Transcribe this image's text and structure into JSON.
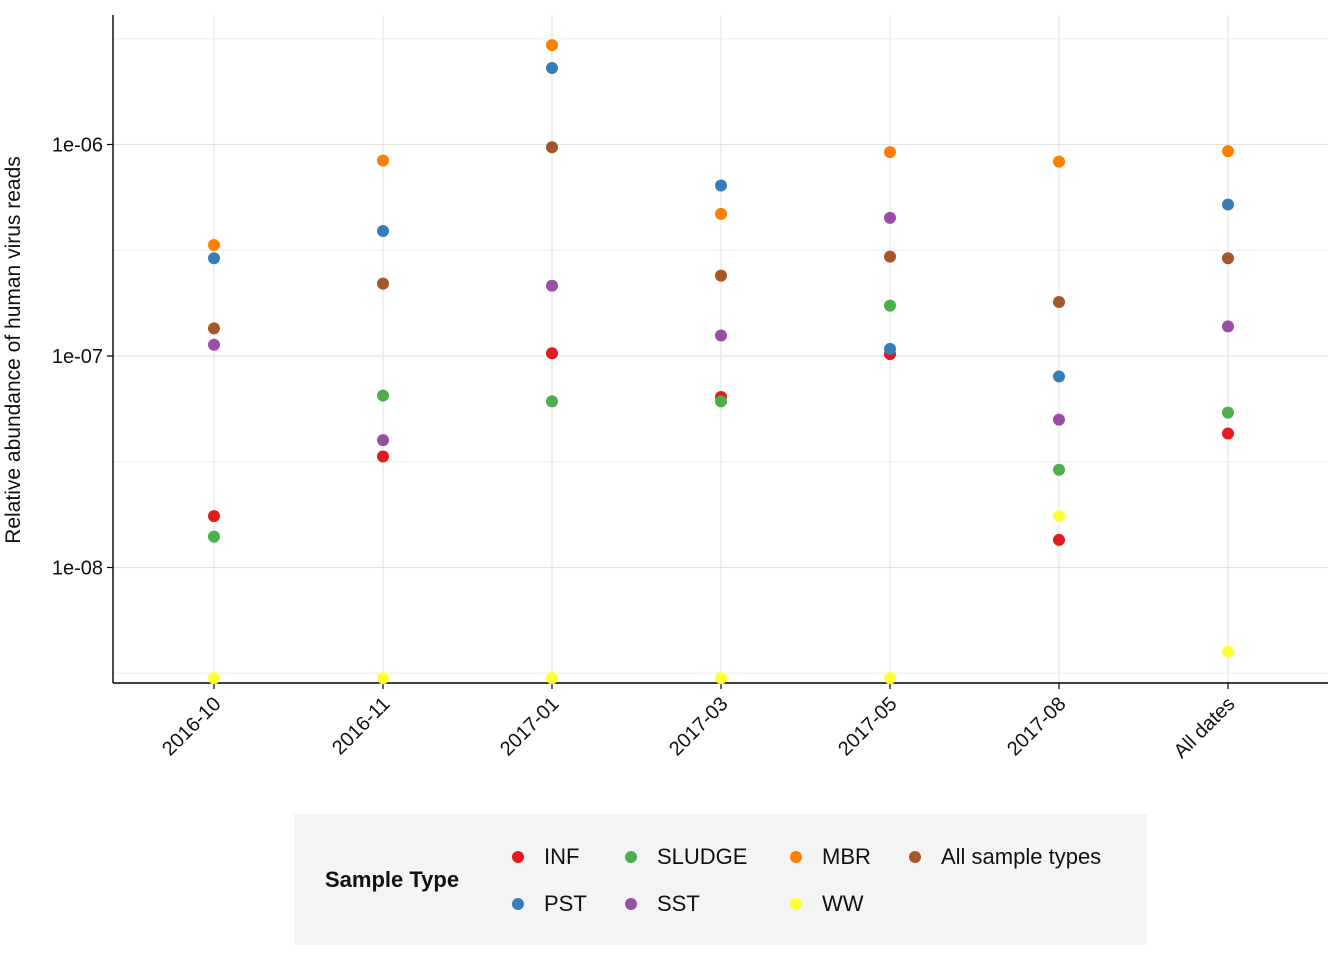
{
  "chart_data": {
    "type": "scatter",
    "ylabel": "Relative abundance of human virus reads",
    "xlabel": "",
    "y_scale": "log10",
    "ylim": [
      3e-09,
      3.5e-06
    ],
    "y_ticks": [
      {
        "value": 1e-08,
        "label": "1e-08"
      },
      {
        "value": 1e-07,
        "label": "1e-07"
      },
      {
        "value": 1e-06,
        "label": "1e-06"
      }
    ],
    "grid": true,
    "categories": [
      "2016-10",
      "2016-11",
      "2017-01",
      "2017-03",
      "2017-05",
      "2017-08",
      "All dates"
    ],
    "legend_position": "bottom",
    "legend_title": "Sample Type",
    "series": [
      {
        "name": "INF",
        "color": "#e41a1c",
        "values": [
          1.75e-08,
          3.35e-08,
          1.03e-07,
          6.4e-08,
          1.02e-07,
          1.35e-08,
          4.3e-08
        ]
      },
      {
        "name": "PST",
        "color": "#377eb8",
        "values": [
          2.9e-07,
          3.9e-07,
          2.3e-06,
          6.4e-07,
          1.08e-07,
          8e-08,
          5.2e-07
        ]
      },
      {
        "name": "SLUDGE",
        "color": "#4daf4a",
        "values": [
          1.4e-08,
          6.5e-08,
          6.1e-08,
          6.1e-08,
          1.73e-07,
          2.9e-08,
          5.4e-08
        ]
      },
      {
        "name": "SST",
        "color": "#984ea3",
        "values": [
          1.13e-07,
          4e-08,
          2.15e-07,
          1.25e-07,
          4.5e-07,
          5e-08,
          1.38e-07
        ]
      },
      {
        "name": "MBR",
        "color": "#ff7f00",
        "values": [
          3.35e-07,
          8.4e-07,
          2.95e-06,
          4.7e-07,
          9.2e-07,
          8.3e-07,
          9.3e-07
        ]
      },
      {
        "name": "WW",
        "color": "#ffff33",
        "values": [
          3e-09,
          3e-09,
          3e-09,
          3e-09,
          3e-09,
          1.75e-08,
          4e-09
        ]
      },
      {
        "name": "All sample types",
        "color": "#a65628",
        "values": [
          1.35e-07,
          2.2e-07,
          9.7e-07,
          2.4e-07,
          2.95e-07,
          1.8e-07,
          2.9e-07
        ]
      }
    ]
  },
  "legend": {
    "title": "Sample Type",
    "items": [
      {
        "label": "INF",
        "color": "#e41a1c"
      },
      {
        "label": "PST",
        "color": "#377eb8"
      },
      {
        "label": "SLUDGE",
        "color": "#4daf4a"
      },
      {
        "label": "SST",
        "color": "#984ea3"
      },
      {
        "label": "MBR",
        "color": "#ff7f00"
      },
      {
        "label": "WW",
        "color": "#ffff33"
      },
      {
        "label": "All sample types",
        "color": "#a65628"
      }
    ]
  }
}
